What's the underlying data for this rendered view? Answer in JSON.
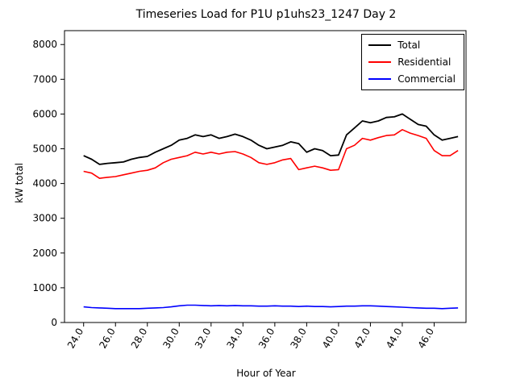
{
  "chart_data": {
    "type": "line",
    "title": "Timeseries Load for P1U p1uhs23_1247  Day 2",
    "xlabel": "Hour of Year",
    "ylabel": "kW total",
    "xlim": [
      22.8,
      48.0
    ],
    "ylim": [
      0,
      8400
    ],
    "x_ticks": [
      24,
      26,
      28,
      30,
      32,
      34,
      36,
      38,
      40,
      42,
      44,
      46
    ],
    "x_tick_labels": [
      "24.0",
      "26.0",
      "28.0",
      "30.0",
      "32.0",
      "34.0",
      "36.0",
      "38.0",
      "40.0",
      "42.0",
      "44.0",
      "46.0"
    ],
    "y_ticks": [
      0,
      1000,
      2000,
      3000,
      4000,
      5000,
      6000,
      7000,
      8000
    ],
    "y_tick_labels": [
      "0",
      "1000",
      "2000",
      "3000",
      "4000",
      "5000",
      "6000",
      "7000",
      "8000"
    ],
    "legend_position": "upper right",
    "grid": false,
    "x": [
      24.0,
      24.5,
      25.0,
      25.5,
      26.0,
      26.5,
      27.0,
      27.5,
      28.0,
      28.5,
      29.0,
      29.5,
      30.0,
      30.5,
      31.0,
      31.5,
      32.0,
      32.5,
      33.0,
      33.5,
      34.0,
      34.5,
      35.0,
      35.5,
      36.0,
      36.5,
      37.0,
      37.5,
      38.0,
      38.5,
      39.0,
      39.5,
      40.0,
      40.5,
      41.0,
      41.5,
      42.0,
      42.5,
      43.0,
      43.5,
      44.0,
      44.5,
      45.0,
      45.5,
      46.0,
      46.5,
      47.0,
      47.5
    ],
    "series": [
      {
        "name": "Total",
        "color": "#000000",
        "values": [
          4800,
          4700,
          4550,
          4580,
          4600,
          4620,
          4700,
          4750,
          4780,
          4900,
          5000,
          5100,
          5250,
          5300,
          5400,
          5350,
          5400,
          5300,
          5350,
          5420,
          5350,
          5250,
          5100,
          5000,
          5050,
          5100,
          5200,
          5150,
          4900,
          5000,
          4950,
          4800,
          4820,
          5400,
          5600,
          5800,
          5750,
          5800,
          5900,
          5920,
          6000,
          5850,
          5700,
          5650,
          5400,
          5250,
          5300,
          5350
        ]
      },
      {
        "name": "Residential",
        "color": "#ff0000",
        "values": [
          4350,
          4300,
          4150,
          4180,
          4200,
          4250,
          4300,
          4350,
          4380,
          4450,
          4600,
          4700,
          4750,
          4800,
          4900,
          4850,
          4900,
          4850,
          4900,
          4920,
          4850,
          4750,
          4600,
          4550,
          4600,
          4680,
          4720,
          4400,
          4450,
          4500,
          4450,
          4380,
          4400,
          5000,
          5100,
          5300,
          5250,
          5320,
          5380,
          5400,
          5550,
          5450,
          5380,
          5300,
          4950,
          4800,
          4800,
          4950
        ]
      },
      {
        "name": "Commercial",
        "color": "#0000ff",
        "values": [
          450,
          430,
          420,
          410,
          400,
          400,
          400,
          400,
          410,
          420,
          430,
          450,
          480,
          500,
          500,
          490,
          480,
          490,
          480,
          490,
          480,
          480,
          470,
          470,
          480,
          470,
          470,
          460,
          470,
          460,
          460,
          450,
          460,
          470,
          470,
          480,
          480,
          470,
          460,
          450,
          440,
          430,
          420,
          410,
          410,
          400,
          410,
          420
        ]
      }
    ]
  }
}
